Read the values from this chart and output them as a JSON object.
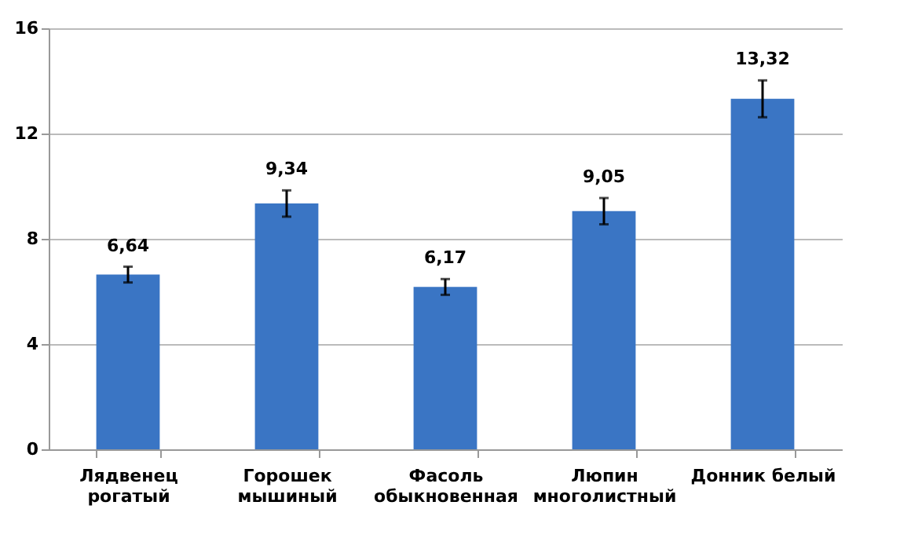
{
  "chart_data": {
    "type": "bar",
    "categories": [
      "Лядвенец рогатый",
      "Горошек мышиный",
      "Фасоль обыкновенная",
      "Люпин многолистный",
      "Донник белый"
    ],
    "values": [
      6.64,
      9.34,
      6.17,
      9.05,
      13.32
    ],
    "errors": [
      0.3,
      0.5,
      0.3,
      0.5,
      0.7
    ],
    "value_labels": [
      "6,64",
      "9,34",
      "6,17",
      "9,05",
      "13,32"
    ],
    "color": "#3a75c4",
    "ylim": [
      0,
      16
    ],
    "yticks": [
      0,
      4,
      8,
      12,
      16
    ],
    "grid": "y"
  }
}
